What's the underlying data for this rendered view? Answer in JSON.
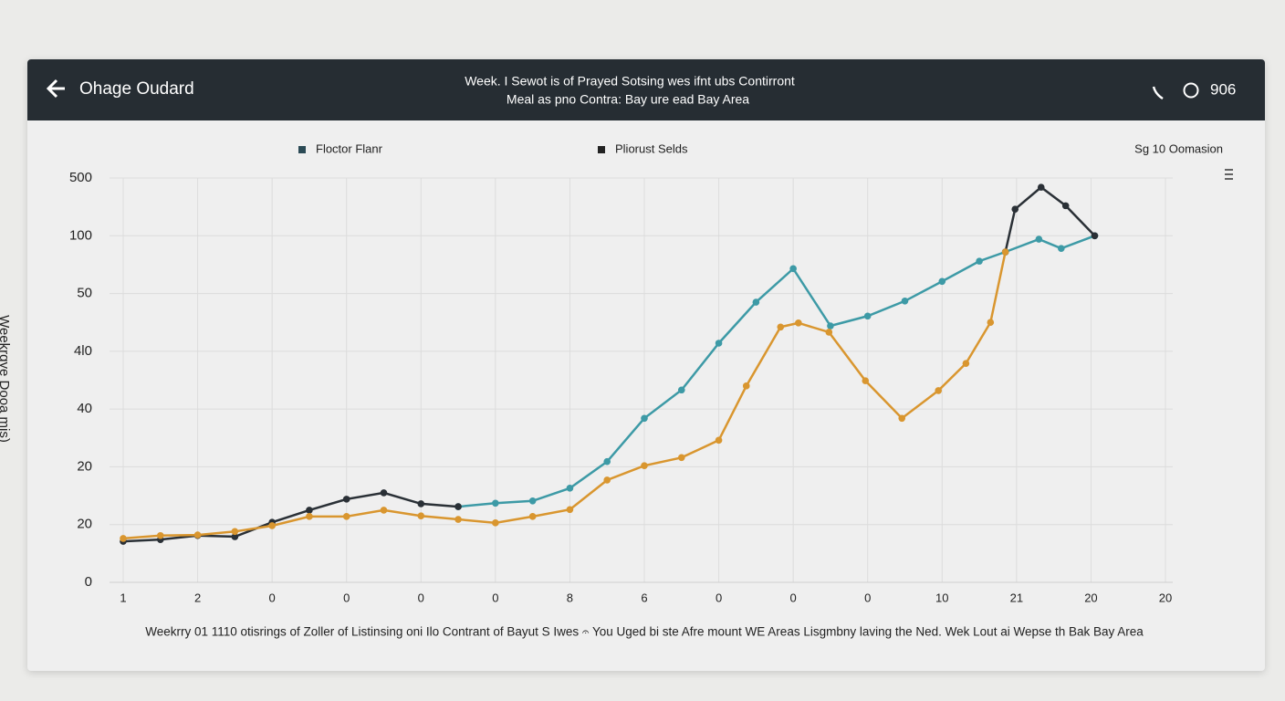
{
  "header": {
    "title": "Ohage Oudard",
    "subtitle_lines": [
      "Week. I Sewot is of Prayed Sotsing wes ifnt ubs Contirront",
      "Meal as pno Contra: Bay ure ead Bay Area"
    ],
    "status": "906"
  },
  "chart_data": {
    "type": "line",
    "legend_extra": "Sg 10 Oomasion",
    "ylabel": "Weekrgye Dooa mis)",
    "caption": "Weekrry 01 1110 otisrings of Zoller of Listinsing oni Ilo Contrant of Bayut S Iwes 𝄐 You Uged bi ste Afre mount WE Areas Lisgmbny laving the Ned. Wek Lout ai Wepse th Bak Bay Area",
    "categories": [
      "1",
      "2",
      "0",
      "0",
      "0",
      "0",
      "8",
      "6",
      "0",
      "0",
      "0",
      "10",
      "21",
      "20",
      "20"
    ],
    "xlim": [
      0,
      14
    ],
    "ylim": [
      0,
      7
    ],
    "yticks": [
      0,
      {
        "value": 1,
        "label": "20"
      },
      {
        "value": 2,
        "label": "20"
      },
      {
        "value": 3,
        "label": "40"
      },
      {
        "value": 4,
        "label": "4l0"
      },
      {
        "value": 5,
        "label": "50"
      },
      {
        "value": 6,
        "label": "100"
      },
      {
        "value": 7,
        "label": "500"
      }
    ],
    "grid": true,
    "series": [
      {
        "name": "Floctor Flanr",
        "color": "#3d9aa6",
        "legend_color": "#2b4a55",
        "x": [
          4.5,
          5,
          5.5,
          6,
          6.5,
          7,
          7.5,
          8,
          8.5,
          9,
          9.5,
          10,
          10.5,
          11,
          11.5,
          11.85,
          12.3,
          12.6,
          13.05
        ],
        "values": [
          1.31,
          1.37,
          1.41,
          1.63,
          2.09,
          2.84,
          3.33,
          4.14,
          4.85,
          5.43,
          4.44,
          4.61,
          4.87,
          5.21,
          5.56,
          5.72,
          5.94,
          5.78,
          6.0
        ]
      },
      {
        "name": "Pliorust Selds",
        "color": "#2a3036",
        "legend_color": "#222222",
        "x": [
          0,
          0.5,
          1,
          1.5,
          2,
          2.5,
          3,
          3.5,
          4,
          4.5,
          null,
          11.85,
          11.98,
          12.33,
          12.66,
          13.05
        ],
        "values": [
          0.71,
          0.74,
          0.81,
          0.79,
          1.04,
          1.25,
          1.44,
          1.55,
          1.36,
          1.31,
          null,
          5.72,
          6.46,
          6.84,
          6.52,
          6.0
        ]
      },
      {
        "color": "#d9962f",
        "x": [
          0,
          0.5,
          1,
          1.5,
          2,
          2.5,
          3,
          3.5,
          4,
          4.5,
          5,
          5.5,
          6,
          6.5,
          7,
          7.5,
          8,
          8.37,
          8.83,
          9.07,
          9.48,
          9.97,
          10.46,
          10.95,
          11.32,
          11.65,
          11.85
        ],
        "values": [
          0.76,
          0.81,
          0.82,
          0.88,
          0.98,
          1.14,
          1.14,
          1.25,
          1.15,
          1.09,
          1.03,
          1.14,
          1.26,
          1.77,
          2.02,
          2.16,
          2.46,
          3.4,
          4.42,
          4.49,
          4.33,
          3.49,
          2.84,
          3.32,
          3.79,
          4.5,
          5.72
        ]
      }
    ]
  }
}
